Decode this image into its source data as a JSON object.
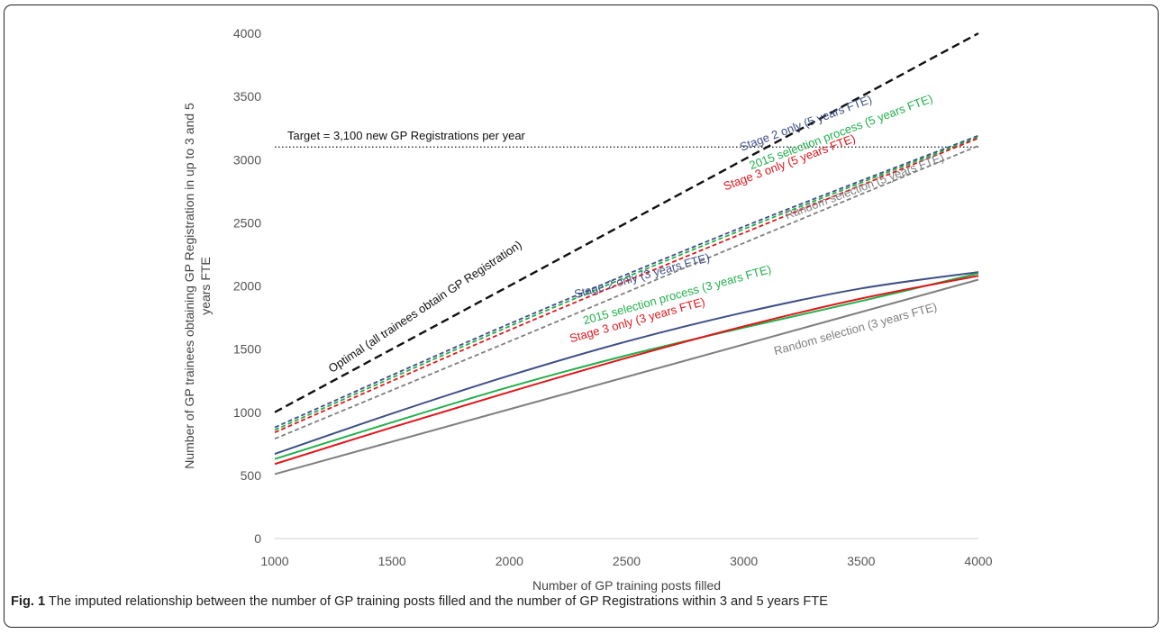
{
  "chart_data": {
    "type": "line",
    "xlabel": "Number of GP training posts filled",
    "ylabel_line1": "Number of GP trainees obtaining GP Registration in up to 3 and 5",
    "ylabel_line2": "years FTE",
    "xlim": [
      1000,
      4000
    ],
    "ylim": [
      0,
      4000
    ],
    "x_ticks": [
      1000,
      1500,
      2000,
      2500,
      3000,
      3500,
      4000
    ],
    "y_ticks": [
      0,
      500,
      1000,
      1500,
      2000,
      2500,
      3000,
      3500,
      4000
    ],
    "grid": false,
    "target": {
      "value": 3100,
      "label": "Target = 3,100 new GP Registrations per year"
    },
    "series": [
      {
        "name": "Optimal (all trainees obtain GP Registration)",
        "color": "#111111",
        "dash": "dashed",
        "x": [
          1000,
          4000
        ],
        "y": [
          1000,
          4000
        ]
      },
      {
        "name": "Stage 2 only (5 years FTE)",
        "color": "#3f4f86",
        "dash": "dashed",
        "x": [
          1000,
          2000,
          3000,
          4000
        ],
        "y": [
          880,
          1700,
          2470,
          3190
        ]
      },
      {
        "name": "2015 selection process (5 years FTE)",
        "color": "#22b04b",
        "dash": "dashed",
        "x": [
          1000,
          2000,
          3000,
          4000
        ],
        "y": [
          860,
          1680,
          2450,
          3180
        ]
      },
      {
        "name": "Stage 3 only (5 years FTE)",
        "color": "#e0161b",
        "dash": "dashed",
        "x": [
          1000,
          2000,
          3000,
          4000
        ],
        "y": [
          840,
          1650,
          2420,
          3170
        ]
      },
      {
        "name": "Random selection (5 years FTE)",
        "color": "#7f7f7f",
        "dash": "dashed",
        "x": [
          1000,
          2000,
          3000,
          4000
        ],
        "y": [
          790,
          1560,
          2340,
          3110
        ]
      },
      {
        "name": "Stage 2 only (3 years FTE)",
        "color": "#3f4f86",
        "dash": "solid",
        "x": [
          1000,
          1500,
          2000,
          2500,
          3000,
          3500,
          4000
        ],
        "y": [
          670,
          990,
          1290,
          1560,
          1790,
          1980,
          2110
        ]
      },
      {
        "name": "2015 selection process (3 years FTE)",
        "color": "#22b04b",
        "dash": "solid",
        "x": [
          1000,
          1500,
          2000,
          2500,
          3000,
          3500,
          4000
        ],
        "y": [
          630,
          920,
          1200,
          1450,
          1670,
          1880,
          2100
        ]
      },
      {
        "name": "Stage 3 only (3 years FTE)",
        "color": "#e0161b",
        "dash": "solid",
        "x": [
          1000,
          1500,
          2000,
          2500,
          3000,
          3500,
          4000
        ],
        "y": [
          590,
          880,
          1160,
          1430,
          1680,
          1900,
          2080
        ]
      },
      {
        "name": "Random selection (3 years FTE)",
        "color": "#7f7f7f",
        "dash": "solid",
        "x": [
          1000,
          4000
        ],
        "y": [
          510,
          2050
        ]
      }
    ],
    "annotations": [
      {
        "text": "Optimal (all trainees obtain GP Registration)",
        "color": "#111111",
        "at": [
          1650,
          1810
        ]
      },
      {
        "text": "Stage 2 only (5 years FTE)",
        "color": "#3f4f86",
        "at": [
          3270,
          3260
        ]
      },
      {
        "text": "2015 selection process (5 years FTE)",
        "color": "#22b04b",
        "at": [
          3420,
          3190
        ]
      },
      {
        "text": "Stage 3 only (5 years FTE)",
        "color": "#e0161b",
        "at": [
          3200,
          2950
        ]
      },
      {
        "text": "Random selection (5 years FTE)",
        "color": "#7f7f7f",
        "at": [
          3520,
          2760
        ]
      },
      {
        "text": "Stage 2 only (3 years FTE)",
        "color": "#3f4f86",
        "at": [
          2570,
          2050
        ]
      },
      {
        "text": "2015 selection process (3 years FTE)",
        "color": "#22b04b",
        "at": [
          2720,
          1900
        ]
      },
      {
        "text": "Stage 3 only (3 years FTE)",
        "color": "#e0161b",
        "at": [
          2550,
          1700
        ]
      },
      {
        "text": "Random selection (3 years FTE)",
        "color": "#7f7f7f",
        "at": [
          3480,
          1630
        ]
      }
    ]
  },
  "caption": {
    "label": "Fig. 1",
    "text": " The imputed relationship between the number of GP training posts filled and the number of GP Registrations within 3 and 5 years FTE"
  }
}
